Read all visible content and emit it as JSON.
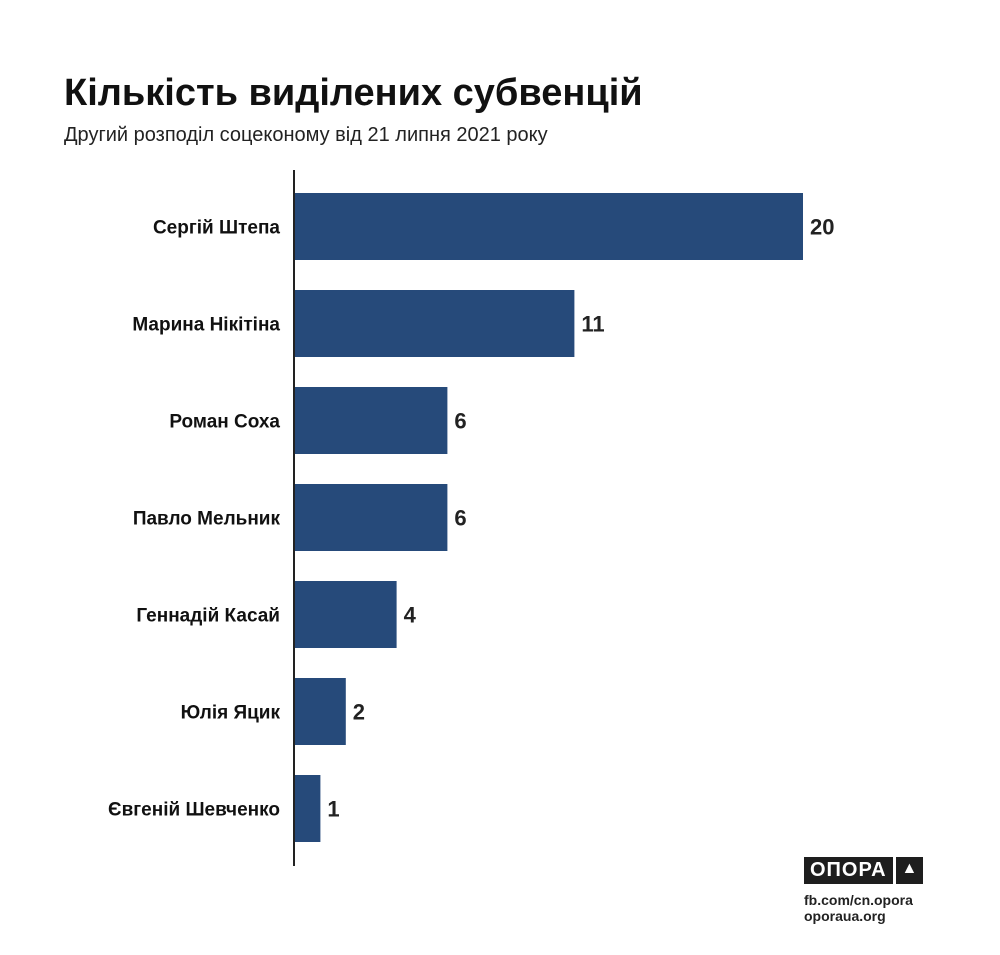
{
  "chart_data": {
    "type": "bar",
    "orientation": "horizontal",
    "title": "Кількість виділених субвенцій",
    "subtitle": "Другий розподіл соцеконому від 21 липня 2021 року",
    "categories": [
      "Сергій Штепа",
      "Марина Нікітіна",
      "Роман Соха",
      "Павло Мельник",
      "Геннадій Касай",
      "Юлія Яцик",
      "Євгеній Шевченко"
    ],
    "values": [
      20,
      11,
      6,
      6,
      4,
      2,
      1
    ],
    "xlim": [
      0,
      20
    ],
    "grid": false,
    "bar_color": "#264a7a"
  },
  "branding": {
    "logo": "ОПОРА",
    "links": [
      "fb.com/cn.opora",
      "oporaua.org"
    ]
  }
}
